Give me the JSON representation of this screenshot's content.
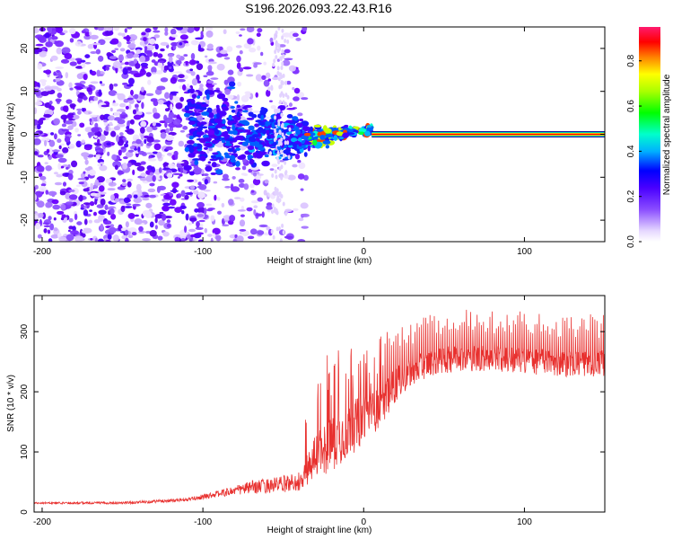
{
  "title": "S196.2026.093.22.43.R16",
  "chart_data": [
    {
      "type": "heatmap",
      "title": "S196.2026.093.22.43.R16",
      "xlabel": "Height of straight line (km)",
      "ylabel": "Frequency (Hz)",
      "xlim": [
        -205,
        150
      ],
      "ylim": [
        -25,
        25
      ],
      "x_ticks": [
        -200,
        -100,
        0,
        100
      ],
      "y_ticks": [
        -20,
        -10,
        0,
        10,
        20
      ],
      "carrier": {
        "x_start": 5,
        "x_end": 150,
        "frequency": 0
      },
      "colorbar": {
        "label": "Normalized spectral amplitude",
        "range": [
          0.0,
          0.95
        ],
        "ticks": [
          0.0,
          0.2,
          0.4,
          0.6,
          0.8
        ]
      }
    },
    {
      "type": "line",
      "xlabel": "Height of straight line (km)",
      "ylabel": "SNR (10 * v/v)",
      "xlim": [
        -205,
        150
      ],
      "ylim": [
        0,
        360
      ],
      "x_ticks": [
        -200,
        -100,
        0,
        100
      ],
      "y_ticks": [
        0,
        100,
        200,
        300
      ],
      "color": "#e8312f",
      "profile": {
        "x": [
          -205,
          -150,
          -110,
          -90,
          -70,
          -50,
          -40,
          -30,
          -20,
          -10,
          0,
          10,
          20,
          30,
          40,
          60,
          100,
          120,
          150
        ],
        "baseline": [
          15,
          15,
          20,
          30,
          40,
          45,
          50,
          90,
          110,
          130,
          150,
          170,
          210,
          230,
          245,
          255,
          250,
          245,
          245
        ],
        "spike": [
          5,
          8,
          10,
          20,
          40,
          50,
          60,
          150,
          170,
          170,
          150,
          120,
          110,
          90,
          80,
          80,
          80,
          80,
          80
        ]
      }
    }
  ],
  "colors": {
    "series": "#e8312f",
    "carrier_outer": "#000080",
    "carrier_inner": "#ff0000"
  }
}
